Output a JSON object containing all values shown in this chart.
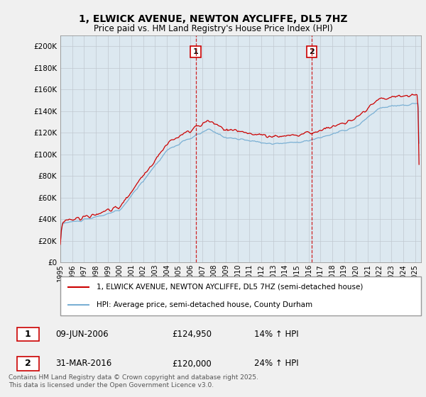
{
  "title": "1, ELWICK AVENUE, NEWTON AYCLIFFE, DL5 7HZ",
  "subtitle": "Price paid vs. HM Land Registry's House Price Index (HPI)",
  "ylim": [
    0,
    210000
  ],
  "yticks": [
    0,
    20000,
    40000,
    60000,
    80000,
    100000,
    120000,
    140000,
    160000,
    180000,
    200000
  ],
  "ytick_labels": [
    "£0",
    "£20K",
    "£40K",
    "£60K",
    "£80K",
    "£100K",
    "£120K",
    "£140K",
    "£160K",
    "£180K",
    "£200K"
  ],
  "xlim_start": 1995.0,
  "xlim_end": 2025.5,
  "red_color": "#cc0000",
  "blue_color": "#7ab0d4",
  "vline1_x": 2006.44,
  "vline2_x": 2016.25,
  "sale1_date": "09-JUN-2006",
  "sale1_price": "£124,950",
  "sale1_hpi": "14% ↑ HPI",
  "sale2_date": "31-MAR-2016",
  "sale2_price": "£120,000",
  "sale2_hpi": "24% ↑ HPI",
  "legend_line1": "1, ELWICK AVENUE, NEWTON AYCLIFFE, DL5 7HZ (semi-detached house)",
  "legend_line2": "HPI: Average price, semi-detached house, County Durham",
  "footer": "Contains HM Land Registry data © Crown copyright and database right 2025.\nThis data is licensed under the Open Government Licence v3.0.",
  "background_color": "#f0f0f0",
  "plot_bg_color": "#dce8f0"
}
